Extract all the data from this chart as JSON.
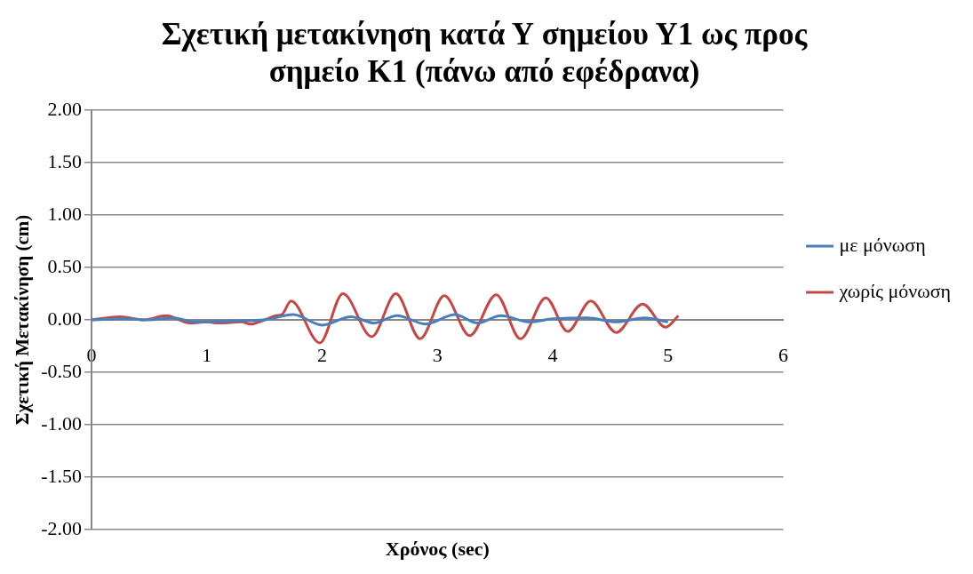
{
  "chart_data": {
    "type": "line",
    "title": "Σχετική μετακίνηση κατά Υ σημείου Υ1 ως προς σημείο Κ1 (πάνω από εφέδρανα)",
    "xlabel": "Χρόνος (sec)",
    "ylabel": "Σχετική Μετακίνηση (cm)",
    "xlim": [
      0,
      6
    ],
    "xticks": [
      0,
      1,
      2,
      3,
      4,
      5,
      6
    ],
    "ylim": [
      -2,
      2
    ],
    "yticks": [
      {
        "value": -2,
        "label": "-2.00"
      },
      {
        "value": -1.5,
        "label": "-1.50"
      },
      {
        "value": -1,
        "label": "-1.00"
      },
      {
        "value": -0.5,
        "label": "-0.50"
      },
      {
        "value": 0,
        "label": "0.00"
      },
      {
        "value": 0.5,
        "label": "0.50"
      },
      {
        "value": 1,
        "label": "1.00"
      },
      {
        "value": 1.5,
        "label": "1.50"
      },
      {
        "value": 2,
        "label": "2.00"
      }
    ],
    "grid": "y",
    "legend": "right",
    "marker": "none",
    "line_style": "solid",
    "series": [
      {
        "name": "με μόνωση",
        "color": "#4a7ebb",
        "x": [
          0,
          0.3,
          0.5,
          0.7,
          0.9,
          1.2,
          1.5,
          1.75,
          2.0,
          2.25,
          2.45,
          2.65,
          2.9,
          3.15,
          3.35,
          3.55,
          3.8,
          4.0,
          4.3,
          4.55,
          4.8,
          5.0
        ],
        "values": [
          0,
          0.01,
          0,
          0.02,
          -0.02,
          -0.01,
          0,
          0.05,
          -0.05,
          0.03,
          -0.03,
          0.04,
          -0.04,
          0.05,
          -0.03,
          0.04,
          -0.02,
          0.01,
          0.02,
          -0.02,
          0.02,
          -0.02
        ]
      },
      {
        "name": "χωρίς μόνωση",
        "color": "#be4b48",
        "x": [
          0,
          0.25,
          0.45,
          0.65,
          0.85,
          1.0,
          1.1,
          1.3,
          1.38,
          1.5,
          1.6,
          1.65,
          1.73,
          1.98,
          2.18,
          2.43,
          2.64,
          2.85,
          3.06,
          3.28,
          3.51,
          3.72,
          3.94,
          4.13,
          4.33,
          4.55,
          4.78,
          4.98,
          5.09
        ],
        "values": [
          0,
          0.03,
          0,
          0.04,
          -0.03,
          -0.02,
          -0.03,
          -0.02,
          -0.04,
          0,
          0.04,
          0.05,
          0.18,
          -0.22,
          0.25,
          -0.16,
          0.25,
          -0.18,
          0.23,
          -0.15,
          0.24,
          -0.18,
          0.21,
          -0.11,
          0.18,
          -0.12,
          0.15,
          -0.07,
          0.04
        ]
      }
    ]
  }
}
